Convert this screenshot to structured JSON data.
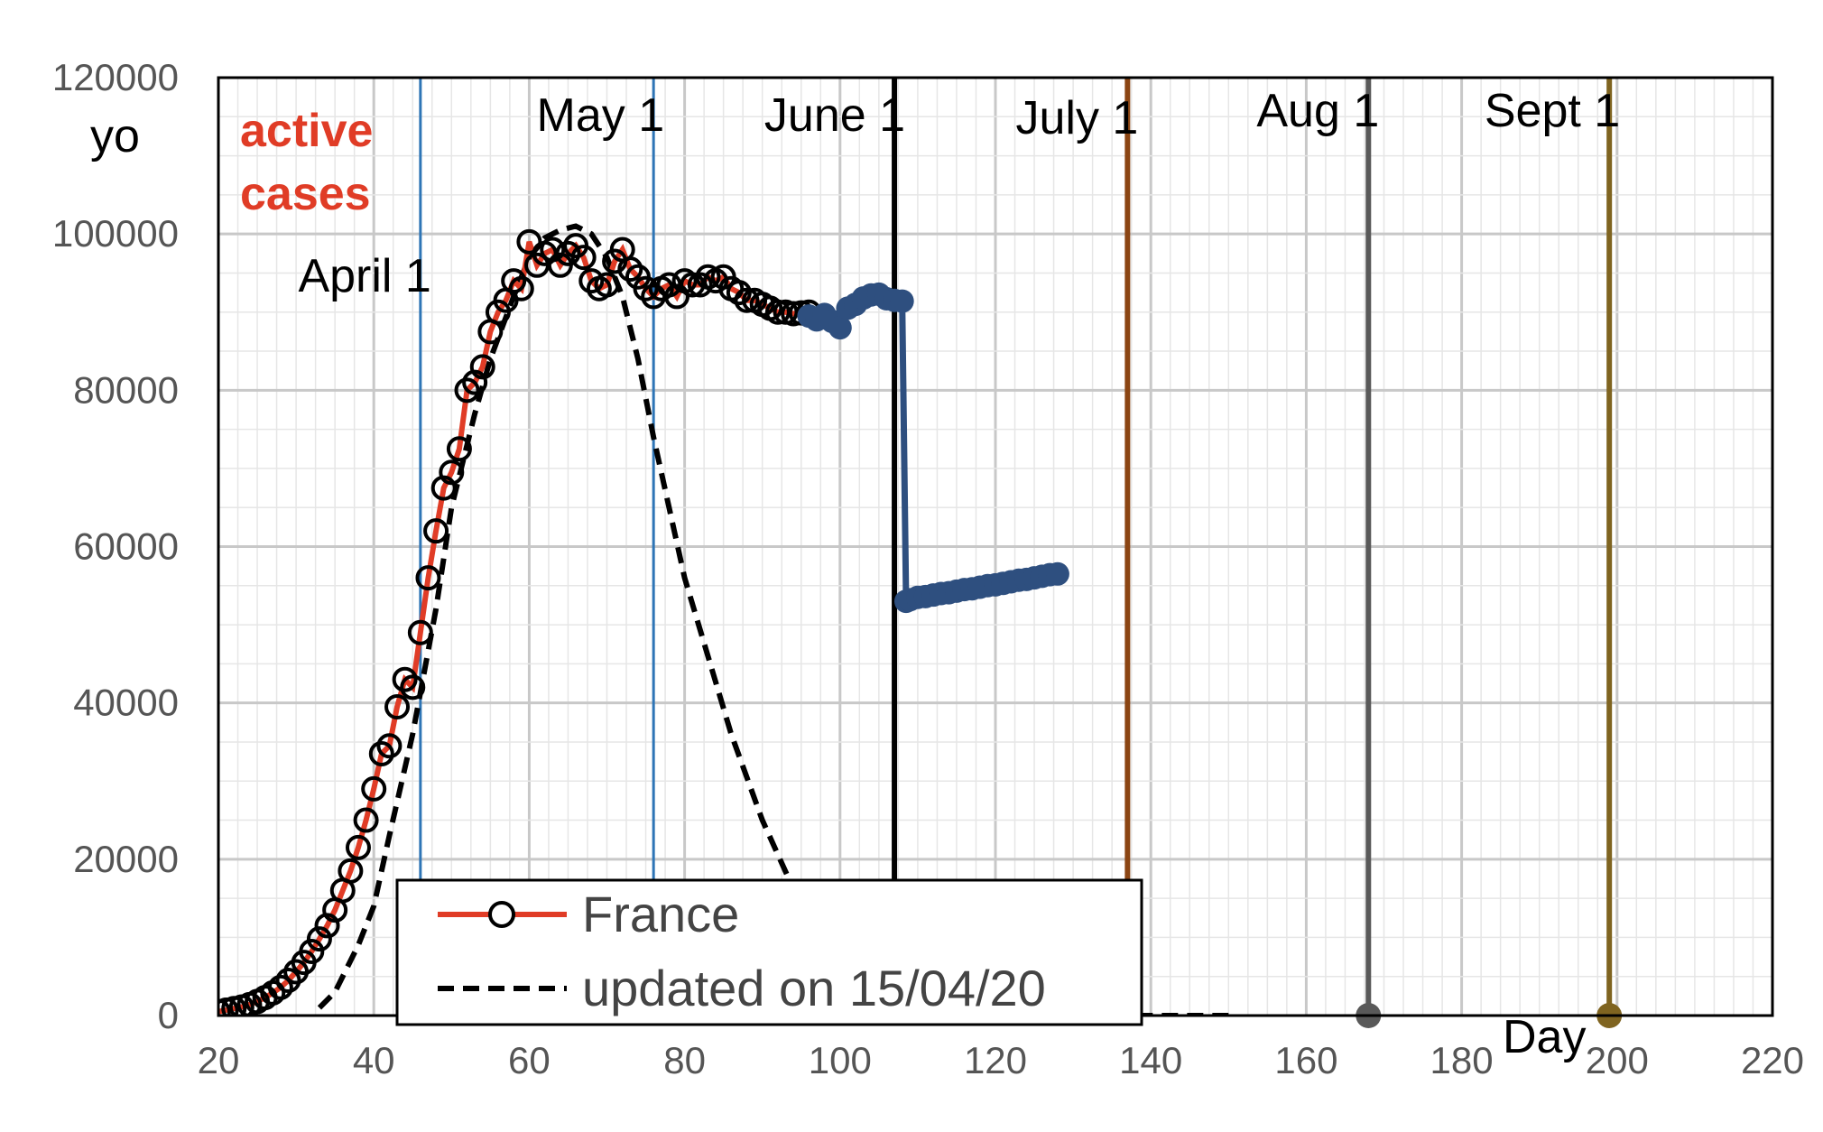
{
  "chart_data": {
    "type": "line",
    "ylabel": "yo",
    "xlabel": "Day",
    "annotation": [
      "active",
      "cases"
    ],
    "xlim": [
      20,
      220
    ],
    "ylim": [
      0,
      120000
    ],
    "x_ticks": [
      20,
      40,
      60,
      80,
      100,
      120,
      140,
      160,
      180,
      200,
      220
    ],
    "y_ticks": [
      0,
      20000,
      40000,
      60000,
      80000,
      100000,
      120000
    ],
    "x_tick_labels": [
      "20",
      "40",
      "60",
      "80",
      "100",
      "120",
      "140",
      "160",
      "180",
      "200",
      "220"
    ],
    "y_tick_labels": [
      "0",
      "20000",
      "40000",
      "60000",
      "80000",
      "100000",
      "120000"
    ],
    "grid": true,
    "legend_position": "bottom-center",
    "colors": {
      "france": "#e03c26",
      "observed_recent": "#2e4f7f",
      "model": "#000000",
      "annotation": "#e03c26"
    },
    "vertical_lines": [
      {
        "x": 46,
        "label": "April 1",
        "color": "#2e75b6"
      },
      {
        "x": 76,
        "label": "May 1",
        "color": "#2e75b6"
      },
      {
        "x": 107,
        "label": "June 1",
        "color": "#000000"
      },
      {
        "x": 137,
        "label": "July 1",
        "color": "#8b4513"
      },
      {
        "x": 168,
        "label": "Aug 1",
        "color": "#595959"
      },
      {
        "x": 199,
        "label": "Sept 1",
        "color": "#7f6420"
      }
    ],
    "series": [
      {
        "name": "France",
        "style": "line-open-circles",
        "x": [
          20,
          21,
          22,
          23,
          24,
          25,
          26,
          27,
          28,
          29,
          30,
          31,
          32,
          33,
          34,
          35,
          36,
          37,
          38,
          39,
          40,
          41,
          42,
          43,
          44,
          45,
          46,
          47,
          48,
          49,
          50,
          51,
          52,
          53,
          54,
          55,
          56,
          57,
          58,
          59,
          60,
          61,
          62,
          63,
          64,
          65,
          66,
          67,
          68,
          69,
          70,
          71,
          72,
          73,
          74,
          75,
          76,
          77,
          78,
          79,
          80,
          81,
          82,
          83,
          84,
          85,
          86,
          87,
          88,
          89,
          90,
          91,
          92,
          93,
          94,
          95,
          96
        ],
        "y": [
          500,
          700,
          900,
          1100,
          1400,
          1800,
          2300,
          2900,
          3600,
          4500,
          5600,
          6800,
          8200,
          9800,
          11500,
          13500,
          16000,
          18500,
          21500,
          25000,
          29000,
          33500,
          34500,
          39500,
          43000,
          42000,
          49000,
          56000,
          62000,
          67500,
          69500,
          72500,
          80000,
          81000,
          83000,
          87500,
          90000,
          91500,
          94000,
          93000,
          99000,
          96000,
          97500,
          98000,
          96000,
          97500,
          98500,
          97000,
          94000,
          93000,
          93500,
          96500,
          98000,
          95500,
          94500,
          93000,
          92000,
          93000,
          93500,
          92000,
          94000,
          93500,
          93500,
          94500,
          94000,
          94500,
          93000,
          92500,
          91500,
          91500,
          91000,
          90500,
          90000,
          90000,
          89800,
          89900,
          90000
        ]
      },
      {
        "name": "",
        "style": "line-filled-circles",
        "x": [
          96,
          97,
          98,
          99,
          100,
          101,
          102,
          103,
          104,
          105,
          106,
          107,
          108,
          108.5,
          109,
          110,
          111,
          112,
          113,
          114,
          115,
          116,
          117,
          118,
          119,
          120,
          121,
          122,
          123,
          124,
          125,
          126,
          127,
          128
        ],
        "y": [
          89500,
          89000,
          89700,
          88800,
          88000,
          90500,
          91000,
          91800,
          92200,
          92300,
          91700,
          91500,
          91400,
          53000,
          53200,
          53500,
          53600,
          53800,
          54000,
          54100,
          54300,
          54500,
          54600,
          54800,
          55000,
          55100,
          55300,
          55500,
          55700,
          55800,
          56000,
          56200,
          56400,
          56500
        ]
      },
      {
        "name": "updated on 15/04/20",
        "style": "dashed",
        "x": [
          33,
          35,
          38,
          40,
          42,
          45,
          48,
          50,
          53,
          55,
          58,
          60,
          62,
          64,
          66,
          68,
          70,
          72,
          74,
          76,
          78,
          80,
          83,
          86,
          90,
          95,
          100,
          105,
          110,
          115,
          120,
          125,
          130,
          135,
          140,
          145,
          150
        ],
        "y": [
          1000,
          3000,
          9000,
          14000,
          23000,
          36000,
          52000,
          65000,
          77000,
          84000,
          92000,
          97000,
          99500,
          100500,
          101000,
          100000,
          97000,
          92000,
          84000,
          74000,
          65000,
          56000,
          46000,
          36000,
          25000,
          14000,
          7000,
          3000,
          1000,
          400,
          150,
          60,
          30,
          10,
          5,
          2,
          0
        ]
      }
    ]
  }
}
